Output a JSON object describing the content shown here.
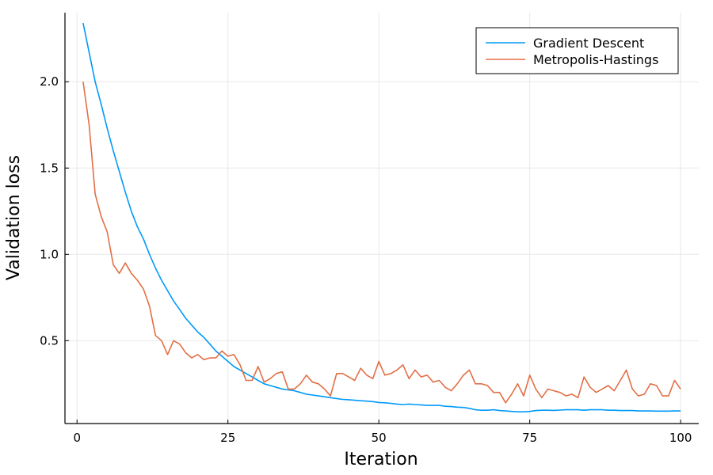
{
  "chart_data": {
    "type": "line",
    "xlabel": "Iteration",
    "ylabel": "Validation loss",
    "xlim": [
      -2,
      103
    ],
    "ylim": [
      0.02,
      2.4
    ],
    "xticks": [
      0,
      25,
      50,
      75,
      100
    ],
    "xtick_labels": [
      "0",
      "25",
      "50",
      "75",
      "100"
    ],
    "yticks": [
      0.5,
      1.0,
      1.5,
      2.0
    ],
    "ytick_labels": [
      "0.5",
      "1.0",
      "1.5",
      "2.0"
    ],
    "grid": true,
    "legend_position": "top-right",
    "series": [
      {
        "name": "Gradient Descent",
        "color": "#009af9",
        "x": [
          1,
          2,
          3,
          4,
          5,
          6,
          7,
          8,
          9,
          10,
          11,
          12,
          13,
          14,
          15,
          16,
          17,
          18,
          19,
          20,
          21,
          22,
          23,
          24,
          25,
          26,
          27,
          28,
          29,
          30,
          31,
          32,
          33,
          34,
          35,
          36,
          37,
          38,
          39,
          40,
          41,
          42,
          43,
          44,
          45,
          46,
          47,
          48,
          49,
          50,
          51,
          52,
          53,
          54,
          55,
          56,
          57,
          58,
          59,
          60,
          61,
          62,
          63,
          64,
          65,
          66,
          67,
          68,
          69,
          70,
          71,
          72,
          73,
          74,
          75,
          76,
          77,
          78,
          79,
          80,
          81,
          82,
          83,
          84,
          85,
          86,
          87,
          88,
          89,
          90,
          91,
          92,
          93,
          94,
          95,
          96,
          97,
          98,
          99,
          100
        ],
        "y": [
          2.34,
          2.17,
          2.0,
          1.87,
          1.73,
          1.6,
          1.48,
          1.36,
          1.25,
          1.16,
          1.09,
          1.0,
          0.92,
          0.85,
          0.79,
          0.73,
          0.68,
          0.63,
          0.59,
          0.55,
          0.52,
          0.48,
          0.44,
          0.41,
          0.38,
          0.35,
          0.33,
          0.31,
          0.29,
          0.27,
          0.25,
          0.24,
          0.23,
          0.22,
          0.215,
          0.21,
          0.2,
          0.19,
          0.185,
          0.18,
          0.175,
          0.17,
          0.165,
          0.16,
          0.158,
          0.155,
          0.152,
          0.15,
          0.147,
          0.142,
          0.14,
          0.137,
          0.133,
          0.13,
          0.133,
          0.13,
          0.128,
          0.125,
          0.125,
          0.125,
          0.12,
          0.118,
          0.115,
          0.113,
          0.108,
          0.1,
          0.097,
          0.097,
          0.1,
          0.095,
          0.093,
          0.09,
          0.088,
          0.088,
          0.09,
          0.095,
          0.097,
          0.097,
          0.096,
          0.098,
          0.1,
          0.1,
          0.1,
          0.097,
          0.1,
          0.1,
          0.1,
          0.097,
          0.097,
          0.095,
          0.095,
          0.095,
          0.093,
          0.093,
          0.093,
          0.092,
          0.092,
          0.092,
          0.093,
          0.093
        ]
      },
      {
        "name": "Metropolis-Hastings",
        "color": "#e26f46",
        "x": [
          1,
          2,
          3,
          4,
          5,
          6,
          7,
          8,
          9,
          10,
          11,
          12,
          13,
          14,
          15,
          16,
          17,
          18,
          19,
          20,
          21,
          22,
          23,
          24,
          25,
          26,
          27,
          28,
          29,
          30,
          31,
          32,
          33,
          34,
          35,
          36,
          37,
          38,
          39,
          40,
          41,
          42,
          43,
          44,
          45,
          46,
          47,
          48,
          49,
          50,
          51,
          52,
          53,
          54,
          55,
          56,
          57,
          58,
          59,
          60,
          61,
          62,
          63,
          64,
          65,
          66,
          67,
          68,
          69,
          70,
          71,
          72,
          73,
          74,
          75,
          76,
          77,
          78,
          79,
          80,
          81,
          82,
          83,
          84,
          85,
          86,
          87,
          88,
          89,
          90,
          91,
          92,
          93,
          94,
          95,
          96,
          97,
          98,
          99,
          100
        ],
        "y": [
          2.0,
          1.75,
          1.35,
          1.22,
          1.13,
          0.94,
          0.89,
          0.95,
          0.89,
          0.85,
          0.8,
          0.7,
          0.53,
          0.5,
          0.42,
          0.5,
          0.48,
          0.43,
          0.4,
          0.42,
          0.39,
          0.4,
          0.4,
          0.44,
          0.41,
          0.42,
          0.36,
          0.27,
          0.27,
          0.35,
          0.26,
          0.28,
          0.31,
          0.32,
          0.22,
          0.22,
          0.25,
          0.3,
          0.26,
          0.25,
          0.22,
          0.18,
          0.31,
          0.31,
          0.29,
          0.27,
          0.34,
          0.3,
          0.28,
          0.38,
          0.3,
          0.31,
          0.33,
          0.36,
          0.28,
          0.33,
          0.29,
          0.3,
          0.26,
          0.27,
          0.23,
          0.21,
          0.25,
          0.3,
          0.33,
          0.25,
          0.25,
          0.24,
          0.2,
          0.2,
          0.14,
          0.19,
          0.25,
          0.18,
          0.3,
          0.22,
          0.17,
          0.22,
          0.21,
          0.2,
          0.18,
          0.19,
          0.17,
          0.29,
          0.23,
          0.2,
          0.22,
          0.24,
          0.21,
          0.27,
          0.33,
          0.22,
          0.18,
          0.19,
          0.25,
          0.24,
          0.18,
          0.18,
          0.27,
          0.22
        ]
      }
    ]
  }
}
